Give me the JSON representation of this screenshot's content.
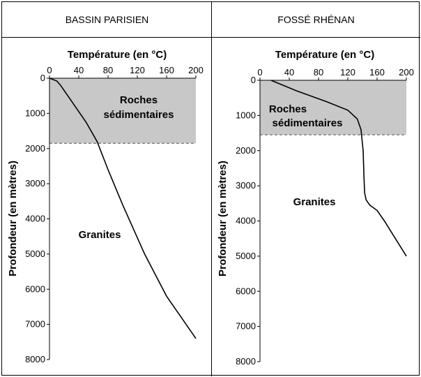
{
  "chart_data": [
    {
      "type": "line",
      "title": "BASSIN PARISIEN",
      "xlabel": "Température  (en °C)",
      "ylabel": "Profondeur (en mètres)",
      "x_axis_position": "top",
      "y_inverted": true,
      "xlim": [
        0,
        200
      ],
      "ylim": [
        0,
        8000
      ],
      "x_ticks": [
        "0",
        "40",
        "80",
        "120",
        "160",
        "200"
      ],
      "y_ticks": [
        "0",
        "1000",
        "2000",
        "3000",
        "4000",
        "5000",
        "6000",
        "7000",
        "8000"
      ],
      "series": [
        {
          "x": [
            0,
            10,
            15,
            30,
            50,
            65,
            80,
            100,
            130,
            160,
            200
          ],
          "y": [
            0,
            80,
            200,
            650,
            1250,
            1800,
            2600,
            3600,
            5000,
            6200,
            7400
          ]
        }
      ],
      "regions": [
        {
          "label_line1": "Roches",
          "label_line2": "sédimentaires",
          "from_depth": 0,
          "to_depth": 1850,
          "fill": "#c8c8c8"
        },
        {
          "label_line1": "Granites",
          "label_line2": "",
          "from_depth": 1850,
          "to_depth": 8000,
          "fill": "#ffffff"
        }
      ]
    },
    {
      "type": "line",
      "title": "FOSSÉ RHÉNAN",
      "xlabel": "Température  (en °C)",
      "ylabel": "Profondeur (en mètres)",
      "x_axis_position": "top",
      "y_inverted": true,
      "xlim": [
        0,
        200
      ],
      "ylim": [
        0,
        8000
      ],
      "x_ticks": [
        "0",
        "40",
        "80",
        "120",
        "160",
        "200"
      ],
      "y_ticks": [
        "0",
        "1000",
        "2000",
        "3000",
        "4000",
        "5000",
        "6000",
        "7000",
        "8000"
      ],
      "series": [
        {
          "x": [
            15,
            50,
            90,
            120,
            133,
            138,
            141,
            142,
            143,
            145,
            150,
            160,
            170,
            200
          ],
          "y": [
            0,
            300,
            600,
            850,
            1100,
            1400,
            2000,
            2700,
            3200,
            3400,
            3550,
            3700,
            4000,
            5000
          ]
        }
      ],
      "regions": [
        {
          "label_line1": "Roches",
          "label_line2": "sédimentaires",
          "from_depth": 0,
          "to_depth": 1550,
          "fill": "#c8c8c8"
        },
        {
          "label_line1": "Granites",
          "label_line2": "",
          "from_depth": 1550,
          "to_depth": 8000,
          "fill": "#ffffff"
        }
      ]
    }
  ]
}
